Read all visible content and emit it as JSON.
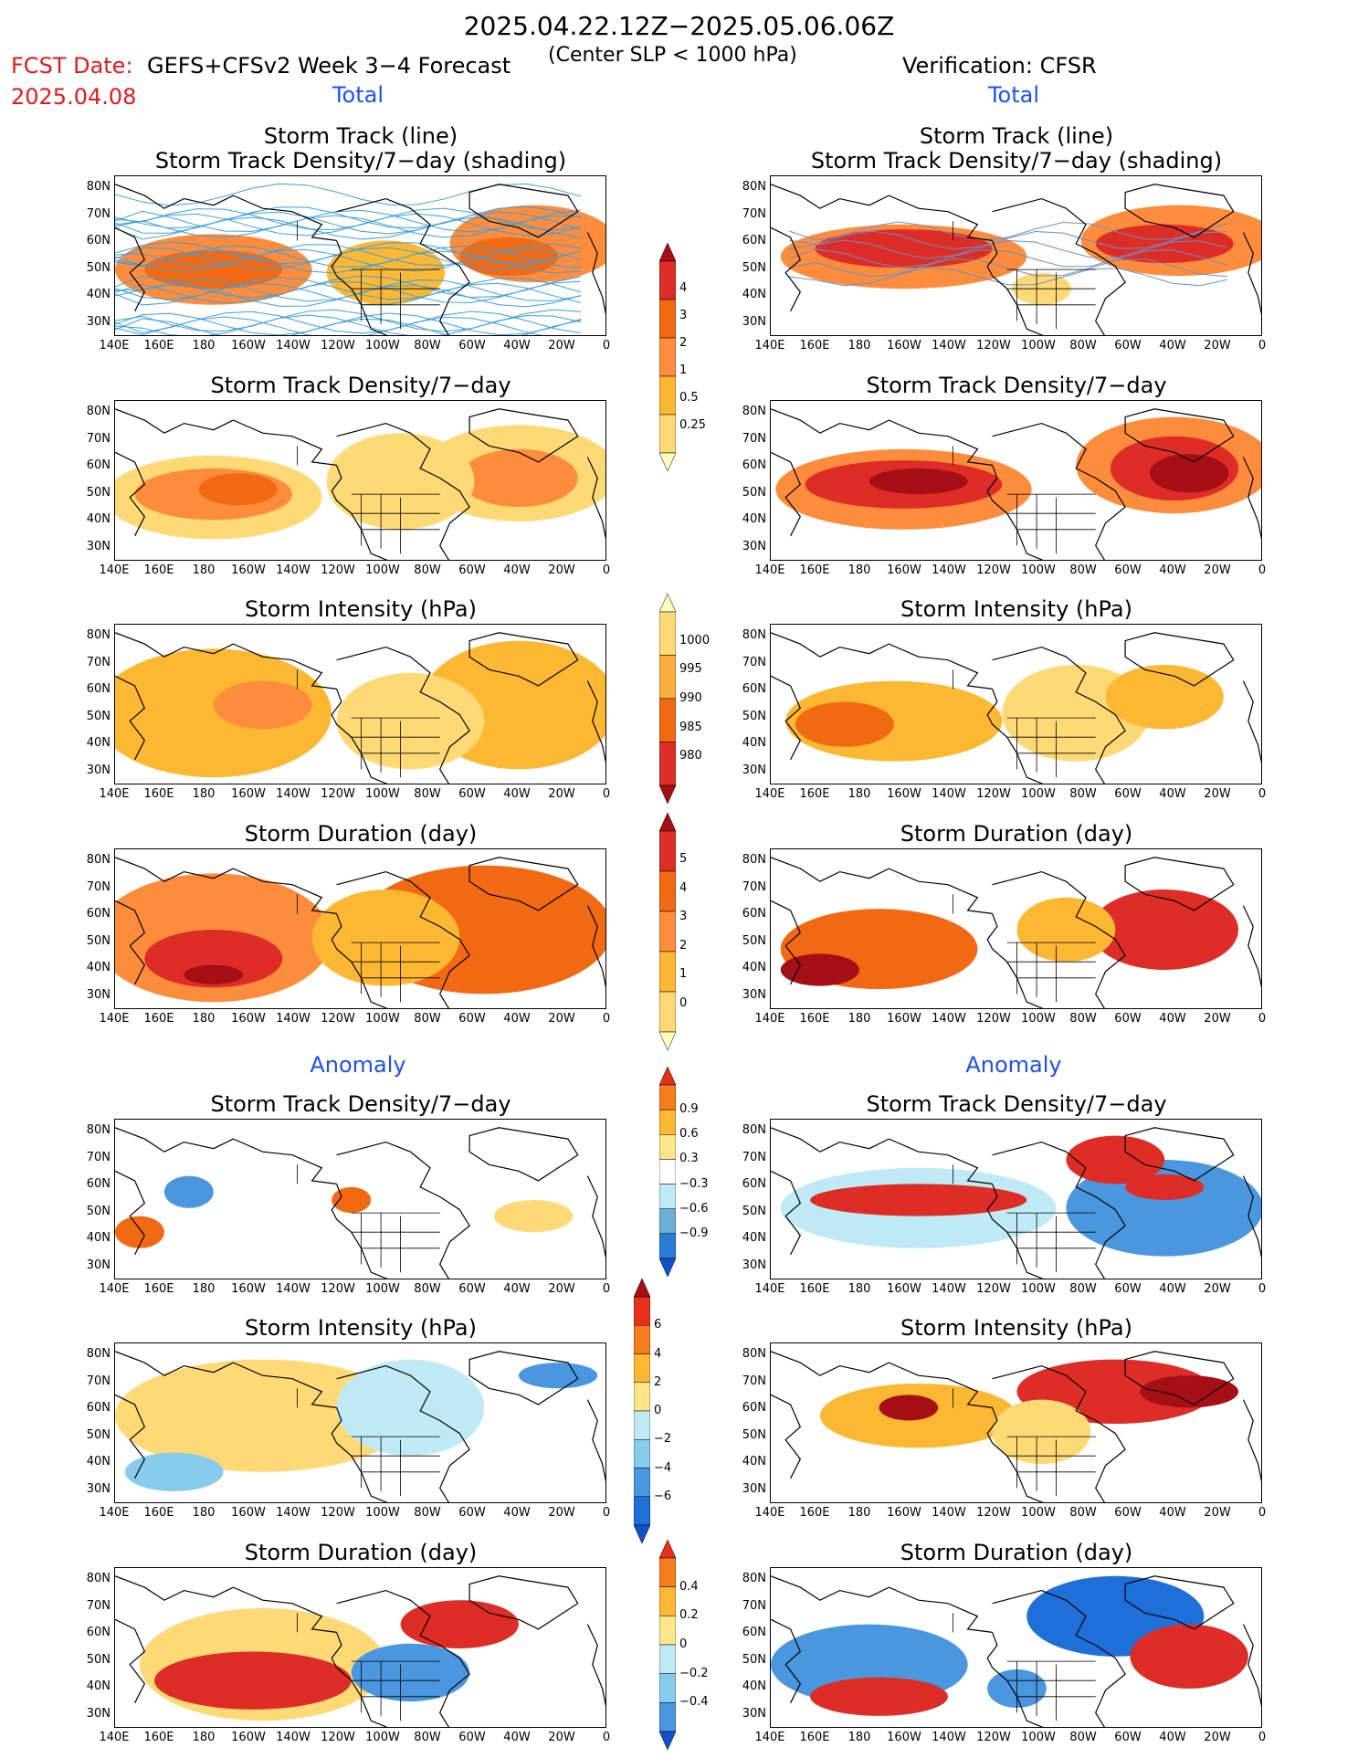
{
  "header": {
    "title": "2025.04.22.12Z−2025.05.06.06Z",
    "subtitle": "(Center SLP < 1000 hPa)",
    "fcst_label": "FCST Date:",
    "fcst_date": "2025.04.08",
    "model": "GEFS+CFSv2 Week 3−4 Forecast",
    "verification": "Verification: CFSR"
  },
  "sections": {
    "total": "Total",
    "anomaly": "Anomaly"
  },
  "panel_titles": {
    "track": [
      "Storm Track (line)",
      "Storm Track Density/7−day (shading)"
    ],
    "density": "Storm Track Density/7−day",
    "intensity": "Storm Intensity (hPa)",
    "duration": "Storm Duration (day)"
  },
  "axes": {
    "lat": [
      "80N",
      "70N",
      "60N",
      "50N",
      "40N",
      "30N"
    ],
    "lon": [
      "140E",
      "160E",
      "180",
      "160W",
      "140W",
      "120W",
      "100W",
      "80W",
      "60W",
      "40W",
      "20W",
      "0"
    ]
  },
  "colorbars": {
    "density_total": {
      "labels": [
        "4",
        "3",
        "2",
        "1",
        "0.5",
        "0.25"
      ],
      "colors": [
        "#a50f15",
        "#de2d26",
        "#f16913",
        "#fd8d3c",
        "#fdb833",
        "#fed976",
        "#ffffbf"
      ]
    },
    "intensity_total": {
      "labels": [
        "1000",
        "995",
        "990",
        "985",
        "980"
      ],
      "colors": [
        "#ffffbf",
        "#fed976",
        "#fdae40",
        "#f16913",
        "#de2d26",
        "#a50f15"
      ]
    },
    "duration_total": {
      "labels": [
        "5",
        "4",
        "3",
        "2",
        "1",
        "0"
      ],
      "colors": [
        "#a50f15",
        "#de2d26",
        "#f16913",
        "#fd8d3c",
        "#fdb833",
        "#fed976",
        "#ffffbf"
      ]
    },
    "density_anom": {
      "labels": [
        "0.9",
        "0.6",
        "0.3",
        "−0.3",
        "−0.6",
        "−0.9"
      ],
      "colors": [
        "#e6301a",
        "#f57c1f",
        "#fdb833",
        "#fde68a",
        "#ffffff",
        "#bfeaf5",
        "#6baed6",
        "#2b7bd8",
        "#1050c8"
      ]
    },
    "intensity_anom": {
      "labels": [
        "6",
        "4",
        "2",
        "0",
        "−2",
        "−4",
        "−6"
      ],
      "colors": [
        "#a50f15",
        "#e6301a",
        "#f57c1f",
        "#fdb833",
        "#fde68a",
        "#bfeaf5",
        "#87cbed",
        "#4a97e0",
        "#1f6fd8",
        "#1050c8"
      ]
    },
    "duration_anom": {
      "labels": [
        "0.4",
        "0.2",
        "0",
        "−0.2",
        "−0.4"
      ],
      "colors": [
        "#e6301a",
        "#f57c1f",
        "#fdb833",
        "#fde68a",
        "#bfeaf5",
        "#87cbed",
        "#4a97e0",
        "#1050c8"
      ]
    }
  }
}
